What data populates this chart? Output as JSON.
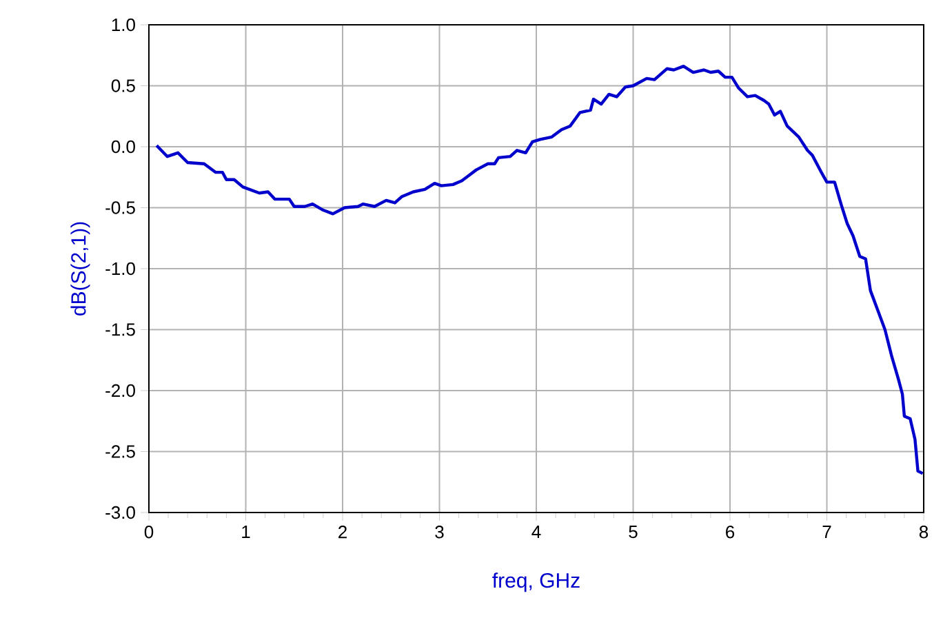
{
  "chart_data": {
    "type": "line",
    "xlabel": "freq, GHz",
    "ylabel": "dB(S(2,1))",
    "xlim": [
      0,
      8
    ],
    "ylim": [
      -3,
      1
    ],
    "xticks": [
      0,
      1,
      2,
      3,
      4,
      5,
      6,
      7,
      8
    ],
    "yticks": [
      {
        "value": -3,
        "label": "-3.0"
      },
      {
        "value": -2.5,
        "label": "-2.5"
      },
      {
        "value": -2,
        "label": "-2.0"
      },
      {
        "value": -1.5,
        "label": "-1.5"
      },
      {
        "value": -1,
        "label": "-1.0"
      },
      {
        "value": -0.5,
        "label": "-0.5"
      },
      {
        "value": 0,
        "label": "0.0"
      },
      {
        "value": 0.5,
        "label": "0.5"
      },
      {
        "value": 1,
        "label": "1.0"
      }
    ],
    "grid": true,
    "marker": "none",
    "line_style": "solid",
    "series": [
      {
        "color": "#0000cc",
        "x": [
          0.08,
          0.19,
          0.3,
          0.4,
          0.57,
          0.69,
          0.76,
          0.8,
          0.88,
          0.97,
          1.14,
          1.23,
          1.3,
          1.45,
          1.5,
          1.61,
          1.69,
          1.8,
          1.9,
          2.02,
          2.16,
          2.21,
          2.33,
          2.45,
          2.54,
          2.61,
          2.73,
          2.85,
          2.95,
          3.02,
          3.14,
          3.23,
          3.38,
          3.5,
          3.57,
          3.61,
          3.73,
          3.8,
          3.89,
          3.96,
          4.04,
          4.16,
          4.26,
          4.35,
          4.45,
          4.56,
          4.59,
          4.67,
          4.75,
          4.83,
          4.92,
          5.0,
          5.14,
          5.22,
          5.35,
          5.42,
          5.52,
          5.62,
          5.73,
          5.8,
          5.88,
          5.95,
          6.02,
          6.09,
          6.18,
          6.26,
          6.35,
          6.4,
          6.46,
          6.52,
          6.59,
          6.71,
          6.8,
          6.85,
          6.95,
          7.0,
          7.08,
          7.15,
          7.21,
          7.27,
          7.34,
          7.4,
          7.45,
          7.53,
          7.6,
          7.67,
          7.74,
          7.78,
          7.8,
          7.86,
          7.91,
          7.94,
          7.99
        ],
        "values": [
          0.01,
          -0.08,
          -0.05,
          -0.13,
          -0.14,
          -0.21,
          -0.21,
          -0.27,
          -0.27,
          -0.33,
          -0.38,
          -0.37,
          -0.43,
          -0.43,
          -0.49,
          -0.49,
          -0.47,
          -0.52,
          -0.55,
          -0.5,
          -0.49,
          -0.47,
          -0.49,
          -0.44,
          -0.46,
          -0.41,
          -0.37,
          -0.35,
          -0.3,
          -0.32,
          -0.31,
          -0.28,
          -0.19,
          -0.14,
          -0.14,
          -0.09,
          -0.08,
          -0.03,
          -0.05,
          0.04,
          0.06,
          0.08,
          0.14,
          0.17,
          0.28,
          0.3,
          0.39,
          0.35,
          0.43,
          0.41,
          0.49,
          0.5,
          0.56,
          0.55,
          0.64,
          0.63,
          0.66,
          0.61,
          0.63,
          0.61,
          0.62,
          0.57,
          0.57,
          0.48,
          0.41,
          0.42,
          0.38,
          0.35,
          0.26,
          0.29,
          0.17,
          0.08,
          -0.03,
          -0.07,
          -0.22,
          -0.29,
          -0.29,
          -0.48,
          -0.63,
          -0.73,
          -0.9,
          -0.92,
          -1.18,
          -1.35,
          -1.5,
          -1.72,
          -1.91,
          -2.03,
          -2.21,
          -2.23,
          -2.4,
          -2.66,
          -2.68
        ]
      }
    ]
  }
}
